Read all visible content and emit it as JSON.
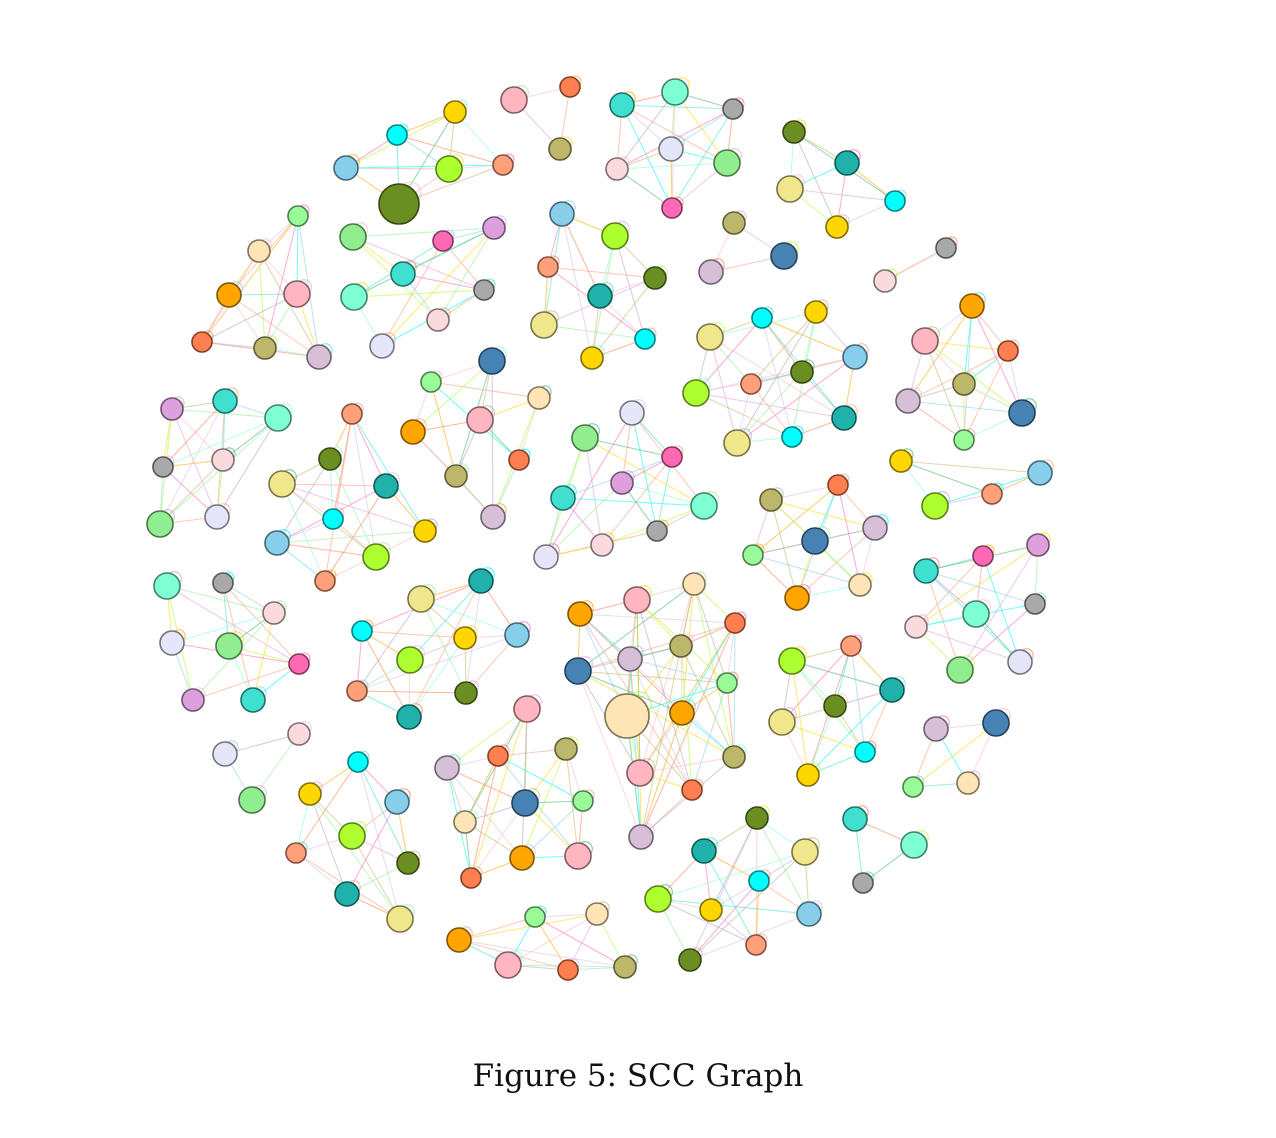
{
  "caption": "Figure 5: SCC Graph",
  "palette": [
    "#00ffff",
    "#90ee90",
    "#ffa500",
    "#ffd700",
    "#ff69b4",
    "#ffb6c1",
    "#87ceeb",
    "#dda0dd",
    "#ff7f50",
    "#adff2f",
    "#40e0d0",
    "#bdb76b",
    "#f0a080",
    "#7fffd4",
    "#d8bfd8",
    "#3cb371",
    "#ffa07a",
    "#a9a9a9"
  ],
  "node_colors": [
    "#00ffff",
    "#90ee90",
    "#ffa500",
    "#ffd700",
    "#ff69b4",
    "#ffb6c1",
    "#87ceeb",
    "#dda0dd",
    "#ff7f50",
    "#adff2f",
    "#40e0d0",
    "#bdb76b",
    "#ffa07a",
    "#7fffd4",
    "#d8bfd8",
    "#6b8e23",
    "#a9a9a9",
    "#4682b4",
    "#20b2aa",
    "#fadadd",
    "#98fb98",
    "#f0e68c",
    "#e6e6fa",
    "#ffe4b5"
  ]
}
